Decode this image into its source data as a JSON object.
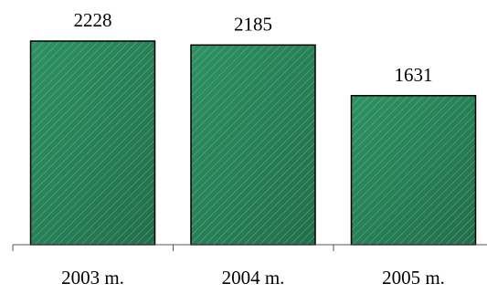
{
  "chart_data": {
    "type": "bar",
    "categories": [
      "2003 m.",
      "2004 m.",
      "2005 m."
    ],
    "values": [
      2228,
      2185,
      1631
    ],
    "data_labels": [
      "2228",
      "2185",
      "1631"
    ],
    "title": "",
    "xlabel": "",
    "ylabel": "",
    "ylim": [
      0,
      2228
    ],
    "grid": false,
    "legend": "none",
    "colors": {
      "bar_fill": "#2e9163",
      "bar_fill_dark": "#226e4b",
      "hatch": "#8fd1ad",
      "bar_stroke": "#000000"
    }
  }
}
